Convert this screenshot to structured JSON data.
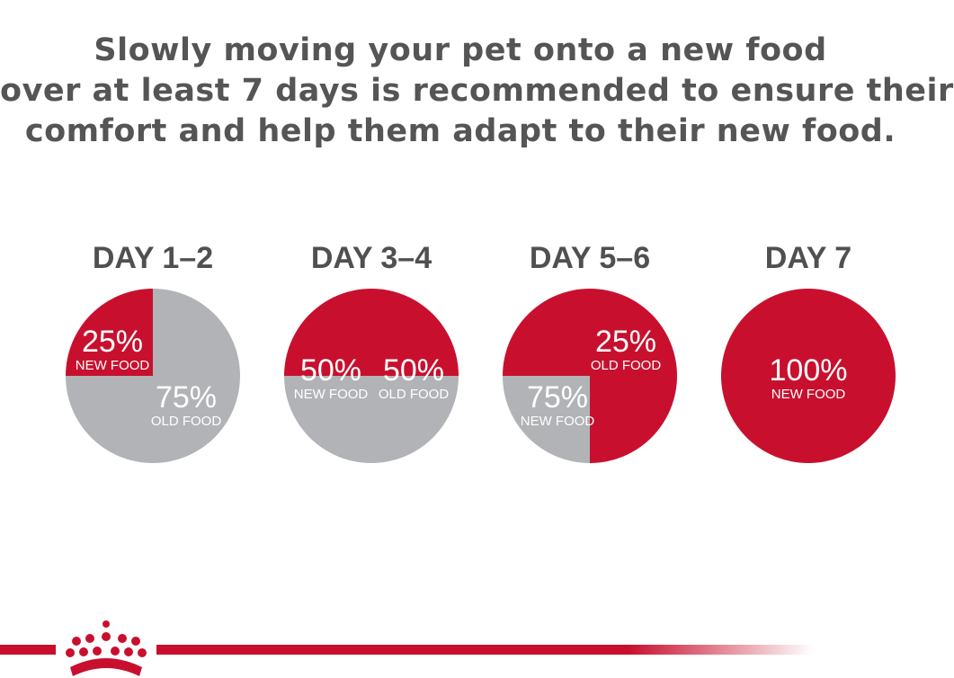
{
  "headline": {
    "lines": [
      "Slowly moving your pet onto a new food",
      "over at least 7 days is recommended to ensure their",
      "comfort and help them adapt to their new food."
    ]
  },
  "chart_data": {
    "type": "pie",
    "title": "Slowly moving your pet onto a new food over at least 7 days is recommended to ensure their comfort and help them adapt to their new food.",
    "series_names": [
      "New food",
      "Old food"
    ],
    "colors": {
      "new": "#c8102e",
      "old": "#b1b3b6"
    },
    "charts": [
      {
        "day": "DAY 1–2",
        "new_value": 25,
        "new_pct": "25%",
        "new_caption": "NEW FOOD",
        "old_value": 75,
        "old_pct": "75%",
        "old_caption": "OLD FOOD"
      },
      {
        "day": "DAY 3–4",
        "new_value": 50,
        "new_pct": "50%",
        "new_caption": "NEW FOOD",
        "old_value": 50,
        "old_pct": "50%",
        "old_caption": "OLD FOOD"
      },
      {
        "day": "DAY 5–6",
        "new_value": 75,
        "new_pct": "75%",
        "new_caption": "NEW FOOD",
        "old_value": 25,
        "old_pct": "25%",
        "old_caption": "OLD FOOD"
      },
      {
        "day": "DAY 7",
        "new_value": 100,
        "new_pct": "100%",
        "new_caption": "NEW FOOD",
        "old_value": 0,
        "old_pct": "",
        "old_caption": ""
      }
    ]
  },
  "brand": {
    "logo_icon": "crown-icon",
    "stripe_color": "#c8102e"
  }
}
